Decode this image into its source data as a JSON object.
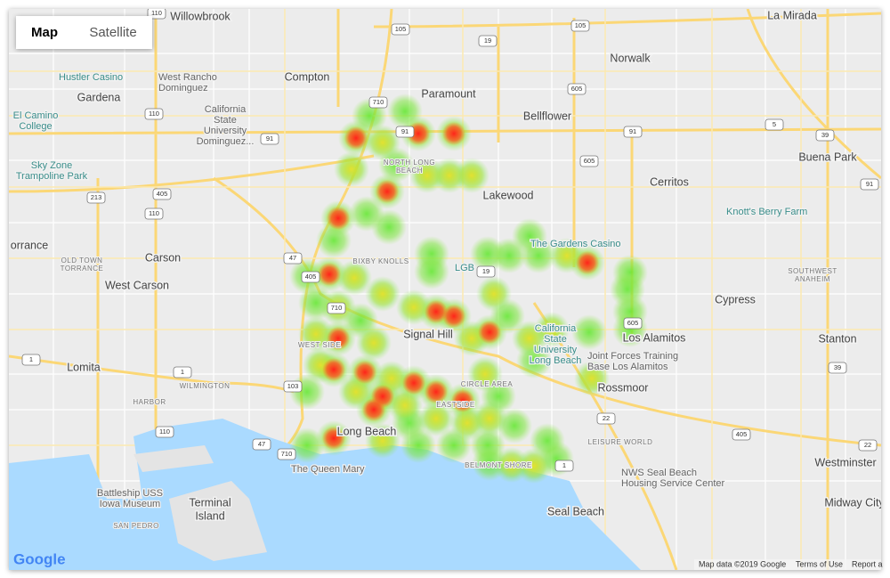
{
  "map_type_control": {
    "map": "Map",
    "satellite": "Satellite"
  },
  "cities": [
    [
      "Willowbrook"
    ],
    [
      "La Mirada"
    ],
    [
      "Norwalk"
    ],
    [
      "Compton"
    ],
    [
      "Gardena"
    ],
    [
      "Paramount"
    ],
    [
      "Bellflower"
    ],
    [
      "Lakewood"
    ],
    [
      "Buena Park"
    ],
    [
      "Cerritos"
    ],
    [
      "Carson"
    ],
    [
      "orrance"
    ],
    [
      "West Carson"
    ],
    [
      "Lomita"
    ],
    [
      "Signal Hill"
    ],
    [
      "Cypress"
    ],
    [
      "Los Alamitos"
    ],
    [
      "Stanton"
    ],
    [
      "Rossmoor"
    ],
    [
      "Long Beach"
    ],
    [
      "Westminster"
    ],
    [
      "Seal Beach"
    ],
    [
      "Midway City"
    ],
    [
      "Terminal",
      "Island"
    ]
  ],
  "neighborhoods": [
    [
      "NORTH LONG",
      "BEACH"
    ],
    [
      "BIXBY KNOLLS"
    ],
    [
      "OLD TOWN",
      "TORRANCE"
    ],
    [
      "WILMINGTON"
    ],
    [
      "HARBOR"
    ],
    [
      "SAN PEDRO"
    ],
    [
      "LEISURE WORLD"
    ],
    [
      "SOUTHWEST",
      "ANAHEIM"
    ],
    [
      "CIRCLE AREA"
    ],
    [
      "BELMONT SHORE"
    ],
    [
      "WEST SIDE"
    ],
    [
      "EASTSIDE"
    ]
  ],
  "places": [
    [
      "Hustler Casino"
    ],
    [
      "West Rancho",
      "Dominguez"
    ],
    [
      "California",
      "State",
      "University",
      "Dominguez..."
    ],
    [
      "El Camino",
      "College"
    ],
    [
      "Sky Zone",
      "Trampoline Park"
    ],
    [
      "Knott's Berry Farm"
    ],
    [
      "The Gardens Casino"
    ],
    [
      "LGB"
    ],
    [
      "California",
      "State",
      "University",
      "Long Beach"
    ],
    [
      "Joint Forces Training",
      "Base Los Alamitos"
    ],
    [
      "The Queen Mary"
    ],
    [
      "Battleship USS",
      "Iowa Museum"
    ],
    [
      "NWS Seal Beach",
      "Housing Service Center"
    ]
  ],
  "highway_shields": [
    "110",
    "105",
    "19",
    "105",
    "605",
    "710",
    "110",
    "91",
    "91",
    "91",
    "5",
    "39",
    "605",
    "405",
    "213",
    "110",
    "91",
    "47",
    "405",
    "710",
    "605",
    "39",
    "1",
    "1",
    "103",
    "110",
    "22",
    "405",
    "47",
    "710",
    "1",
    "22",
    "19"
  ],
  "attribution": {
    "logo": "Google",
    "map_data": "Map data ©2019 Google",
    "terms": "Terms of Use",
    "report": "Report a"
  }
}
